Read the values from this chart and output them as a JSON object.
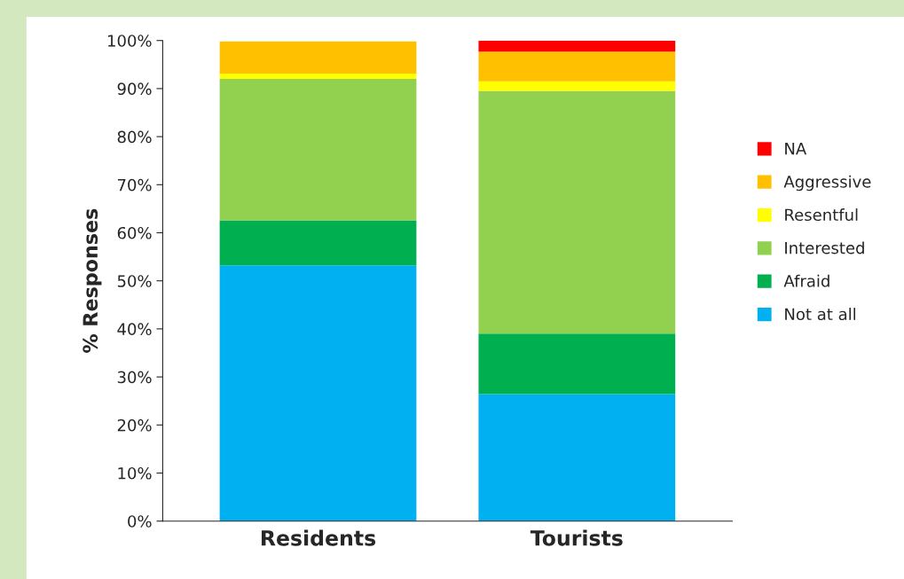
{
  "chart_data": {
    "type": "bar",
    "stacked": true,
    "ylabel": "% Responses",
    "categories": [
      "Residents",
      "Tourists"
    ],
    "series": [
      {
        "name": "Not at all",
        "color": "#00b0f0",
        "values": [
          53.2,
          26.4
        ]
      },
      {
        "name": "Afraid",
        "color": "#00b050",
        "values": [
          9.4,
          12.6
        ]
      },
      {
        "name": "Interested",
        "color": "#92d050",
        "values": [
          29.4,
          50.5
        ]
      },
      {
        "name": "Resentful",
        "color": "#ffff00",
        "values": [
          1.1,
          2.0
        ]
      },
      {
        "name": "Aggressive",
        "color": "#ffc000",
        "values": [
          6.7,
          6.2
        ]
      },
      {
        "name": "NA",
        "color": "#ff0000",
        "values": [
          0,
          2.3
        ]
      }
    ],
    "ylim": [
      0,
      100
    ],
    "yticks": [
      {
        "value": 0,
        "label": "0%"
      },
      {
        "value": 10,
        "label": "10%"
      },
      {
        "value": 20,
        "label": "20%"
      },
      {
        "value": 30,
        "label": "30%"
      },
      {
        "value": 40,
        "label": "40%"
      },
      {
        "value": 50,
        "label": "50%"
      },
      {
        "value": 60,
        "label": "60%"
      },
      {
        "value": 70,
        "label": "70%"
      },
      {
        "value": 80,
        "label": "80%"
      },
      {
        "value": 90,
        "label": "90%"
      },
      {
        "value": 100,
        "label": "100%"
      }
    ],
    "legend": "right",
    "grid": false
  }
}
